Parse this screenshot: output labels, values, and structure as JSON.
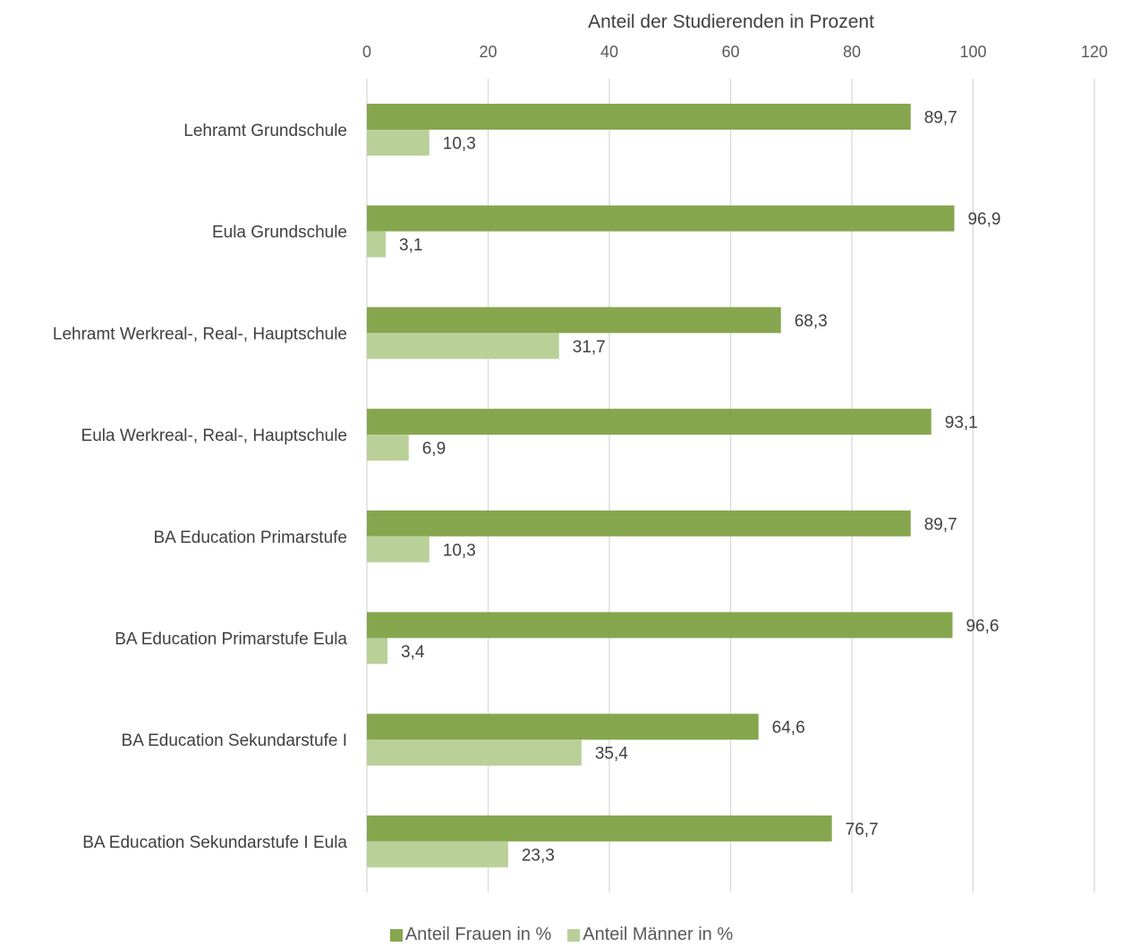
{
  "chart_data": {
    "type": "bar",
    "orientation": "horizontal",
    "title": "",
    "xlabel": "Anteil der Studierenden in Prozent",
    "ylabel": "",
    "xlim": [
      0,
      120
    ],
    "x_ticks": [
      "0",
      "20",
      "40",
      "60",
      "80",
      "100",
      "120"
    ],
    "grid": true,
    "legend_position": "bottom",
    "categories": [
      "Lehramt Grundschule",
      "Eula Grundschule",
      "Lehramt Werkreal-, Real-, Hauptschule",
      "Eula Werkreal-, Real-, Hauptschule",
      "BA Education Primarstufe",
      "BA Education Primarstufe Eula",
      "BA Education Sekundarstufe I",
      "BA Education Sekundarstufe I Eula"
    ],
    "series": [
      {
        "name": "Anteil Frauen in %",
        "color": "#86a64e",
        "values": [
          89.7,
          96.9,
          68.3,
          93.1,
          89.7,
          96.6,
          64.6,
          76.7
        ],
        "labels": [
          "89,7",
          "96,9",
          "68,3",
          "93,1",
          "89,7",
          "96,6",
          "64,6",
          "76,7"
        ]
      },
      {
        "name": "Anteil Männer in %",
        "color": "#b9d098",
        "values": [
          10.3,
          3.1,
          31.7,
          6.9,
          10.3,
          3.4,
          35.4,
          23.3
        ],
        "labels": [
          "10,3",
          "3,1",
          "31,7",
          "6,9",
          "10,3",
          "3,4",
          "35,4",
          "23,3"
        ]
      }
    ]
  }
}
